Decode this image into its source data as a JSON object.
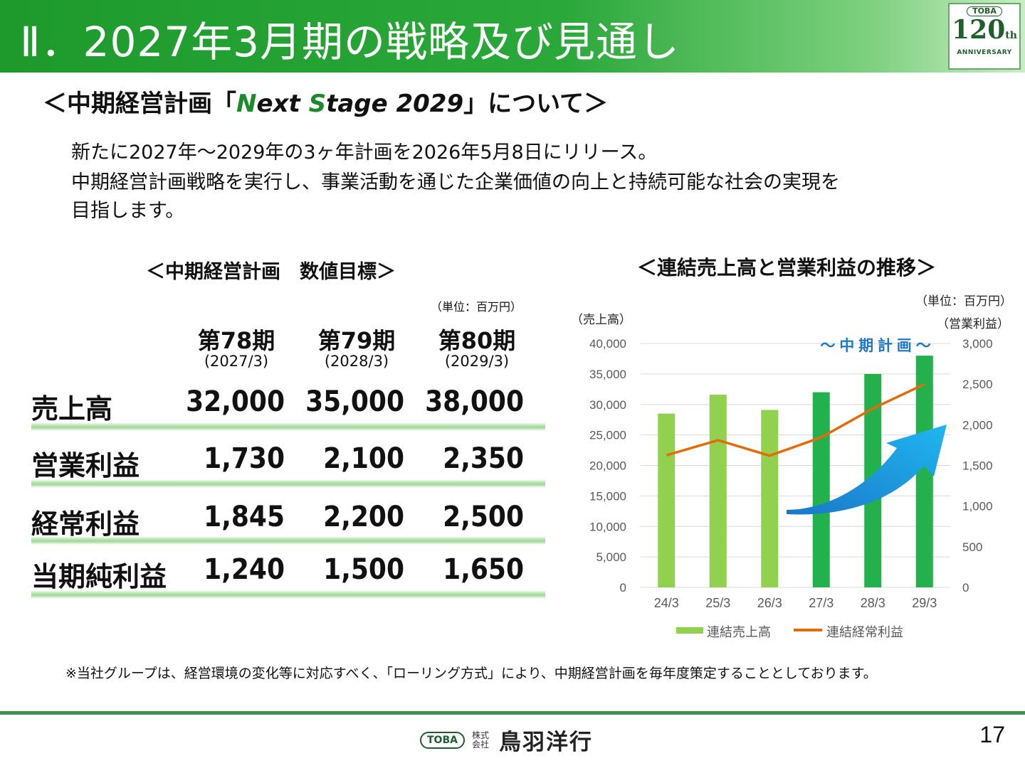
{
  "header": {
    "title": "Ⅱ．2027年3月期の戦略及び見通し"
  },
  "badge": {
    "logo": "TOBA",
    "number": "120",
    "suffix": "th",
    "sub": "ANNIVERSARY"
  },
  "subtitle": {
    "prefix": "＜中期経営計画「",
    "n": "N",
    "ext": "ext ",
    "s": "S",
    "tage": "tage 2029",
    "suffix": "」について＞"
  },
  "paragraphs": [
    "新たに2027年～2029年の3ヶ年計画を2026年5月8日にリリース。",
    "中期経営計画戦略を実行し、事業活動を通じた企業価値の向上と持続可能な社会の実現を",
    "目指します。"
  ],
  "targets": {
    "title": "＜中期経営計画　数値目標＞",
    "unit": "（単位：百万円）",
    "periods": [
      {
        "label": "第78期",
        "date": "(2027/3)"
      },
      {
        "label": "第79期",
        "date": "(2028/3)"
      },
      {
        "label": "第80期",
        "date": "(2029/3)"
      }
    ],
    "rows": [
      {
        "label": "売上高",
        "values": [
          "32,000",
          "35,000",
          "38,000"
        ]
      },
      {
        "label": "営業利益",
        "values": [
          "1,730",
          "2,100",
          "2,350"
        ]
      },
      {
        "label": "経常利益",
        "values": [
          "1,845",
          "2,200",
          "2,500"
        ]
      },
      {
        "label": "当期純利益",
        "values": [
          "1,240",
          "1,500",
          "1,650"
        ]
      }
    ]
  },
  "chart_data": {
    "type": "bar",
    "title": "＜連結売上高と営業利益の推移＞",
    "unit": "（単位：百万円）",
    "ylabel": "（売上高）",
    "y2label": "（営業利益）",
    "annotation": "～ 中 期 計 画 ～",
    "categories": [
      "24/3",
      "25/3",
      "26/3",
      "27/3",
      "28/3",
      "29/3"
    ],
    "ylim": [
      0,
      40000
    ],
    "y2lim": [
      0,
      3000
    ],
    "yticks": [
      "40,000",
      "35,000",
      "30,000",
      "25,000",
      "20,000",
      "15,000",
      "10,000",
      "5,000",
      "0"
    ],
    "y2ticks": [
      "3,000",
      "2,500",
      "2,000",
      "1,500",
      "1,000",
      "500",
      "0"
    ],
    "series": [
      {
        "name": "連結売上高",
        "type": "bar",
        "values": [
          28500,
          31600,
          29100,
          32000,
          35000,
          38000
        ],
        "colors": [
          "#92d050",
          "#92d050",
          "#92d050",
          "#22b14c",
          "#22b14c",
          "#22b14c"
        ]
      },
      {
        "name": "連結経常利益",
        "type": "line",
        "axis": "y2",
        "values": [
          1625,
          1810,
          1620,
          1845,
          2200,
          2500
        ],
        "color": "#e36c0a"
      }
    ],
    "grid": true,
    "legend": "bottom"
  },
  "footnote": "※当社グループは、経営環境の変化等に対応すべく、「ローリング方式」により、中期経営計画を毎年度策定することとしております。",
  "footer": {
    "logo": "TOBA",
    "kabu": "株式会社",
    "company": "鳥羽洋行",
    "page": "17"
  }
}
